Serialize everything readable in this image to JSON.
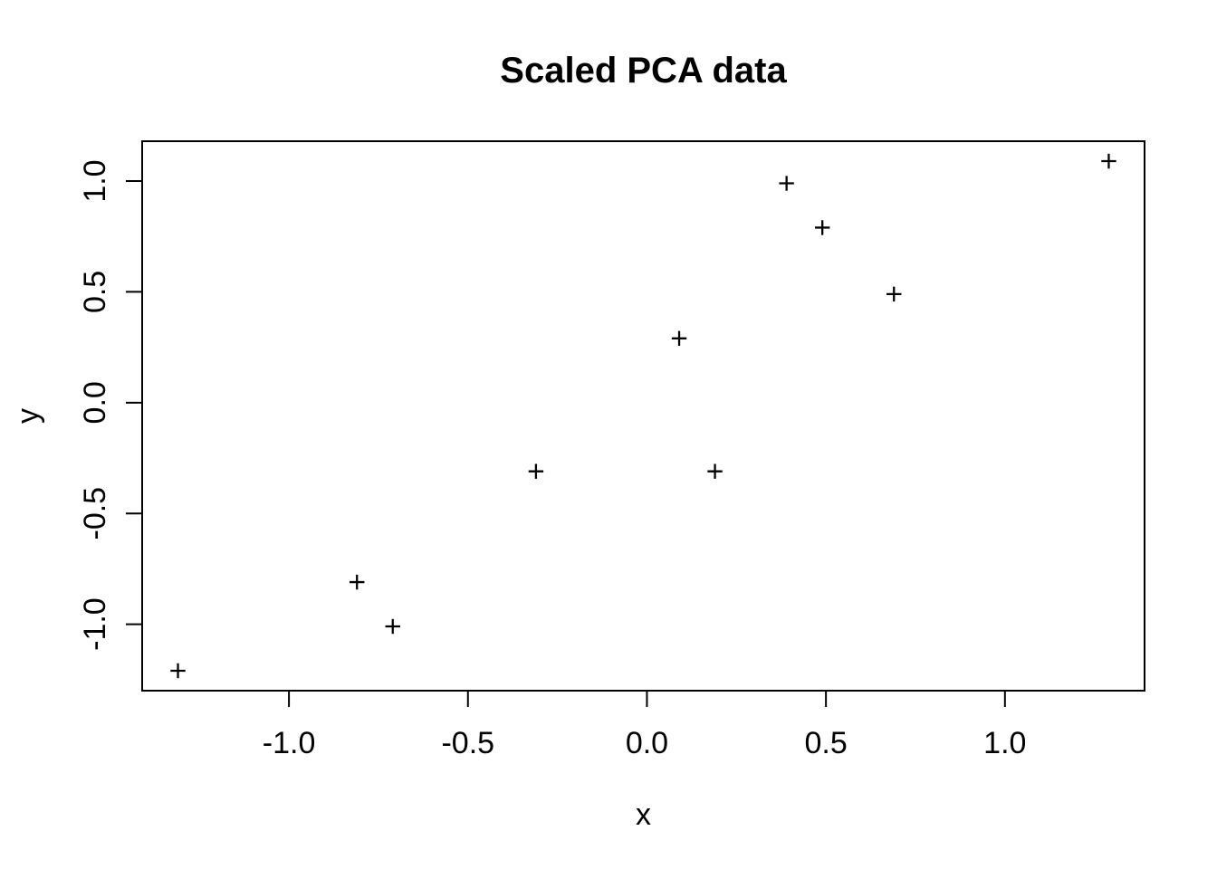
{
  "figure": {
    "title": "Scaled PCA data",
    "xlabel": "x",
    "ylabel": "y"
  },
  "chart_data": {
    "type": "scatter",
    "title": "Scaled PCA data",
    "xlabel": "x",
    "ylabel": "y",
    "marker": "plus",
    "grid": false,
    "legend": null,
    "xlim": [
      -1.41,
      1.39
    ],
    "ylim": [
      -1.3,
      1.18
    ],
    "x_ticks": [
      -1.0,
      -0.5,
      0.0,
      0.5,
      1.0
    ],
    "x_tick_labels": [
      "-1.0",
      "-0.5",
      "0.0",
      "0.5",
      "1.0"
    ],
    "y_ticks": [
      -1.0,
      -0.5,
      0.0,
      0.5,
      1.0
    ],
    "y_tick_labels": [
      "-1.0",
      "-0.5",
      "0.0",
      "0.5",
      "1.0"
    ],
    "points": [
      {
        "x": 0.69,
        "y": 0.49
      },
      {
        "x": -1.31,
        "y": -1.21
      },
      {
        "x": 0.39,
        "y": 0.99
      },
      {
        "x": 0.09,
        "y": 0.29
      },
      {
        "x": 1.29,
        "y": 1.09
      },
      {
        "x": 0.49,
        "y": 0.79
      },
      {
        "x": 0.19,
        "y": -0.31
      },
      {
        "x": -0.81,
        "y": -0.81
      },
      {
        "x": -0.31,
        "y": -0.31
      },
      {
        "x": -0.71,
        "y": -1.01
      }
    ],
    "colors": {
      "foreground": "#000000",
      "background": "#ffffff"
    }
  }
}
